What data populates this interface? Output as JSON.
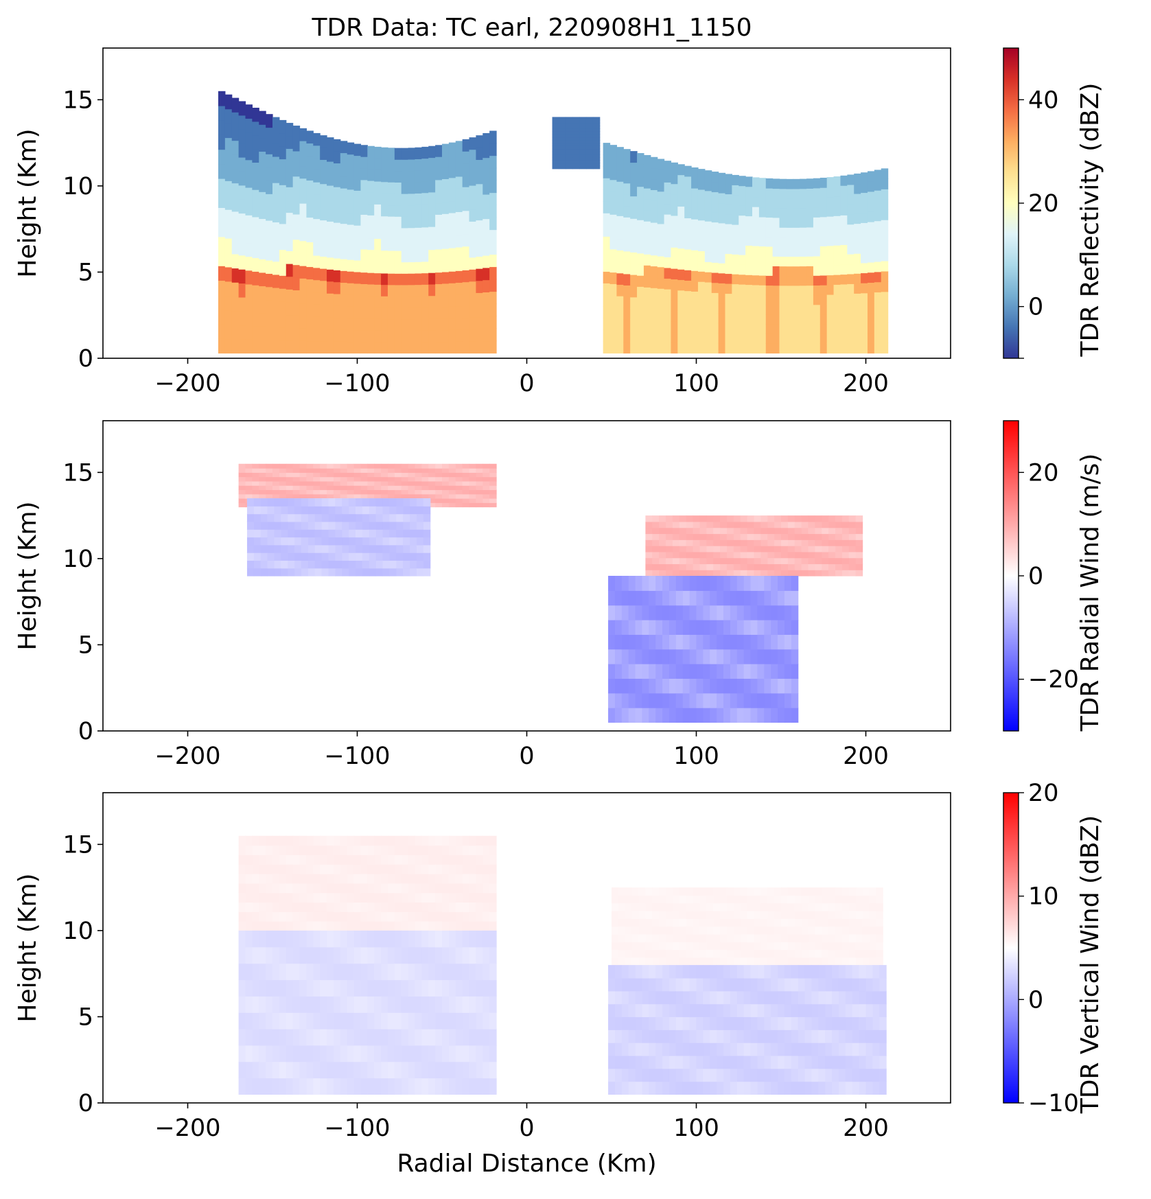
{
  "figure": {
    "title": "TDR Data: TC earl, 220908H1_1150"
  },
  "chart_data": [
    {
      "type": "heatmap",
      "panel": "reflectivity",
      "xlabel": "",
      "ylabel": "Height (Km)",
      "xlim": [
        -250,
        250
      ],
      "ylim": [
        0,
        18
      ],
      "xticks": [
        -200,
        -100,
        0,
        100,
        200
      ],
      "yticks": [
        0,
        5,
        10,
        15
      ],
      "colorbar": {
        "label": "TDR Reflectivity (dBZ)",
        "range": [
          -10,
          50
        ],
        "ticks": [
          -10,
          0,
          20,
          40
        ],
        "tick_labels": [
          "",
          "0",
          "20",
          "40"
        ],
        "colormap": "RdYlBu_r"
      },
      "regions": [
        {
          "name": "left-echo",
          "x_range": [
            -182,
            -20
          ],
          "top_km": [
            10,
            15.5
          ],
          "melting_layer_km": 4.8,
          "max_dbz": 45
        },
        {
          "name": "right-echo",
          "x_range": [
            45,
            212
          ],
          "top_km": [
            9,
            12.5
          ],
          "melting_layer_km": 4.8,
          "max_dbz": 40
        },
        {
          "name": "isolated-anvil",
          "x_range": [
            15,
            40
          ],
          "top_km": [
            14
          ],
          "max_dbz": 0
        }
      ]
    },
    {
      "type": "heatmap",
      "panel": "radial-wind",
      "xlabel": "",
      "ylabel": "Height (Km)",
      "xlim": [
        -250,
        250
      ],
      "ylim": [
        0,
        18
      ],
      "xticks": [
        -200,
        -100,
        0,
        100,
        200
      ],
      "yticks": [
        0,
        5,
        10,
        15
      ],
      "colorbar": {
        "label": "TDR Radial Wind (m/s)",
        "range": [
          -30,
          30
        ],
        "ticks": [
          -20,
          0,
          20
        ],
        "tick_labels": [
          "−20",
          "0",
          "20"
        ],
        "colormap": "bwr"
      },
      "regions": [
        {
          "name": "left-outflow-top",
          "x_range": [
            -170,
            -20
          ],
          "height_km": [
            13,
            15.5
          ],
          "wind_ms": 10
        },
        {
          "name": "left-inflow-band",
          "x_range": [
            -165,
            -60
          ],
          "height_km": [
            9,
            13.5
          ],
          "wind_ms": -8
        },
        {
          "name": "right-outflow",
          "x_range": [
            70,
            195
          ],
          "height_km": [
            9,
            12.5
          ],
          "wind_ms": 10
        },
        {
          "name": "right-inflow",
          "x_range": [
            48,
            160
          ],
          "height_km": [
            0.5,
            9
          ],
          "wind_ms": -14
        }
      ]
    },
    {
      "type": "heatmap",
      "panel": "vertical-wind",
      "xlabel": "Radial Distance (Km)",
      "ylabel": "Height (Km)",
      "xlim": [
        -250,
        250
      ],
      "ylim": [
        0,
        18
      ],
      "xticks": [
        -200,
        -100,
        0,
        100,
        200
      ],
      "yticks": [
        0,
        5,
        10,
        15
      ],
      "colorbar": {
        "label": "TDR Vertical Wind (dBZ)",
        "range": [
          -10,
          20
        ],
        "ticks": [
          -10,
          0,
          10,
          20
        ],
        "tick_labels": [
          "−10",
          "0",
          "10",
          "20"
        ],
        "colormap": "bwr"
      },
      "regions": [
        {
          "name": "left-upper",
          "x_range": [
            -170,
            -20
          ],
          "height_km": [
            10,
            15.5
          ],
          "wind_ms": 1.5
        },
        {
          "name": "left-lower",
          "x_range": [
            -170,
            -20
          ],
          "height_km": [
            0.5,
            10
          ],
          "wind_ms": -1.5
        },
        {
          "name": "right-upper",
          "x_range": [
            50,
            210
          ],
          "height_km": [
            8,
            12.5
          ],
          "wind_ms": 1
        },
        {
          "name": "right-lower",
          "x_range": [
            48,
            212
          ],
          "height_km": [
            0.5,
            8
          ],
          "wind_ms": -2
        }
      ]
    }
  ],
  "colors": {
    "refl_ramp": [
      "#313695",
      "#4575b4",
      "#74add1",
      "#abd9e9",
      "#e0f3f8",
      "#ffffbf",
      "#fee090",
      "#fdae61",
      "#f46d43",
      "#d73027",
      "#a50026"
    ],
    "bwr_ramp": [
      "#0000ff",
      "#ffffff",
      "#ff0000"
    ]
  }
}
